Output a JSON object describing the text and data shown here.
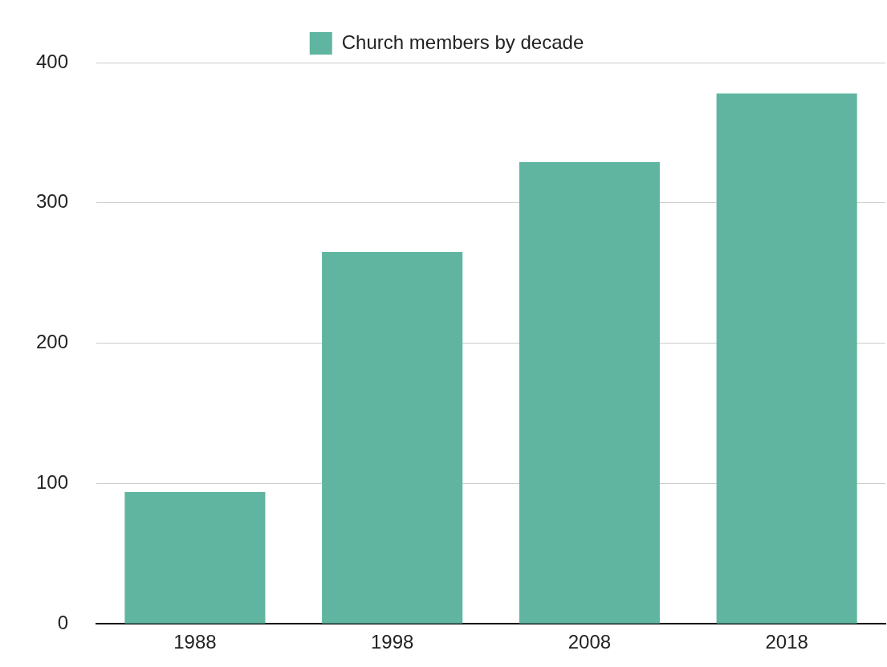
{
  "chart_data": {
    "type": "bar",
    "categories": [
      "1988",
      "1998",
      "2008",
      "2018"
    ],
    "series": [
      {
        "name": "Church members by decade",
        "color": "#5fb5a0",
        "values": [
          94,
          265,
          329,
          378
        ]
      }
    ],
    "ylim": [
      0,
      400
    ],
    "yticks": [
      0,
      100,
      200,
      300,
      400
    ],
    "grid": "y",
    "legend": "top"
  }
}
